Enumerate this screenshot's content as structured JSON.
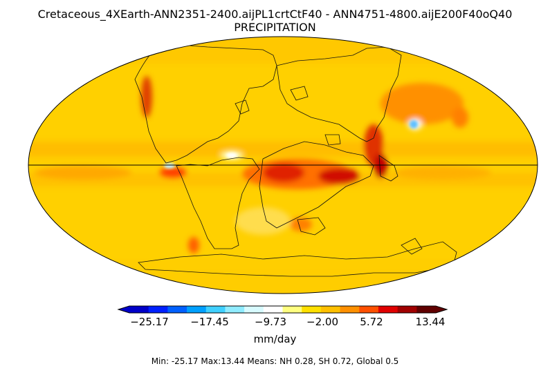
{
  "title_line1": "Cretaceous_4XEarth-ANN2351-2400.aijPL1crtCtF40 - ANN4751-4800.aijE200F40oQ40",
  "title_line2": "PRECIPITATION",
  "colorbar": {
    "min": -25.17,
    "max": 13.44,
    "tick_labels": [
      "−25.17",
      "−17.45",
      "−9.73",
      "−2.00",
      "5.72",
      "13.44"
    ],
    "units": "mm/day",
    "colors": [
      "#0000c8",
      "#0020ff",
      "#0060ff",
      "#00a0ff",
      "#40d0ff",
      "#90ecff",
      "#d8fbff",
      "#ffffff",
      "#ffff80",
      "#ffe000",
      "#ffc000",
      "#ff9000",
      "#ff5000",
      "#e00000",
      "#a00000",
      "#600000"
    ]
  },
  "stats_text": "Min: -25.17  Max:13.44  Means: NH 0.28,  SH 0.72, Global 0.5",
  "map": {
    "projection": "Robinson-like global ellipse",
    "field_color": "#ffd000",
    "equator_line": true
  }
}
